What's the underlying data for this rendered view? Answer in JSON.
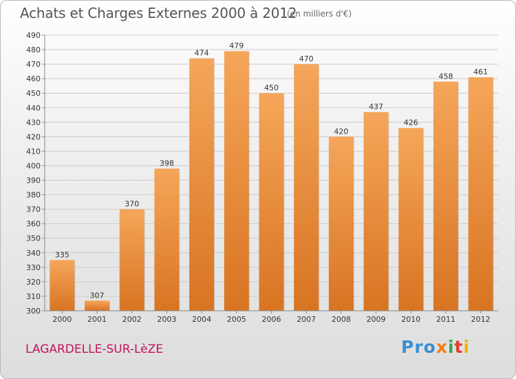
{
  "header": {
    "title": "Achats et Charges Externes 2000 à 2012",
    "subtitle": "(en milliers d'€)"
  },
  "footer": {
    "place": "LAGARDELLE-SUR-LèZE",
    "logo": [
      "Pro",
      "x",
      "i",
      "t",
      "i"
    ]
  },
  "colors": {
    "bar_top": "#f5a65a",
    "bar_bottom": "#d87422",
    "grid": "#cccccc",
    "place_text": "#c4135a"
  },
  "chart_data": {
    "type": "bar",
    "title": "Achats et Charges Externes 2000 à 2012",
    "subtitle": "(en milliers d'€)",
    "categories": [
      "2000",
      "2001",
      "2002",
      "2003",
      "2004",
      "2005",
      "2006",
      "2007",
      "2008",
      "2009",
      "2010",
      "2011",
      "2012"
    ],
    "values": [
      335,
      307,
      370,
      398,
      474,
      479,
      450,
      470,
      420,
      437,
      426,
      458,
      461
    ],
    "ylim": [
      300,
      490
    ],
    "ytick_step": 10,
    "grid": true,
    "grid_direction": "horizontal",
    "legend": "none",
    "data_labels": true
  }
}
